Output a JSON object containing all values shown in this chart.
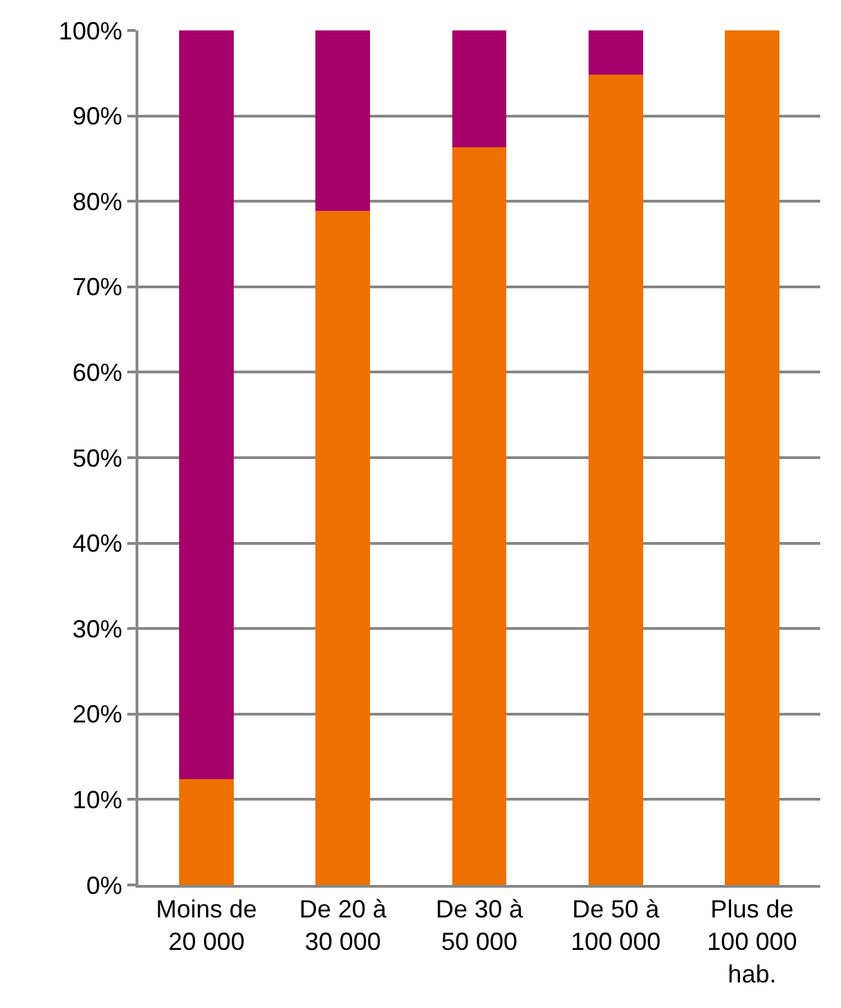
{
  "chart_data": {
    "type": "bar",
    "stacked": true,
    "categories": [
      "Moins de\n20 000",
      "De 20 à\n30 000",
      "De 30 à\n50 000",
      "De 50 à\n100 000",
      "Plus de\n100 000\nhab."
    ],
    "series": [
      {
        "color": "#ee7100",
        "values": [
          12.4,
          78.9,
          86.3,
          94.8,
          100
        ]
      },
      {
        "color": "#a6006b",
        "values": [
          87.6,
          21.1,
          13.7,
          5.2,
          0
        ]
      }
    ],
    "ylim": [
      0,
      100
    ],
    "yticks": [
      {
        "value": 0,
        "label": "0%"
      },
      {
        "value": 10,
        "label": "10%"
      },
      {
        "value": 20,
        "label": "20%"
      },
      {
        "value": 30,
        "label": "30%"
      },
      {
        "value": 40,
        "label": "40%"
      },
      {
        "value": 50,
        "label": "50%"
      },
      {
        "value": 60,
        "label": "60%"
      },
      {
        "value": 70,
        "label": "70%"
      },
      {
        "value": 80,
        "label": "80%"
      },
      {
        "value": 90,
        "label": "90%"
      },
      {
        "value": 100,
        "label": "100%"
      }
    ],
    "grid": "y"
  }
}
